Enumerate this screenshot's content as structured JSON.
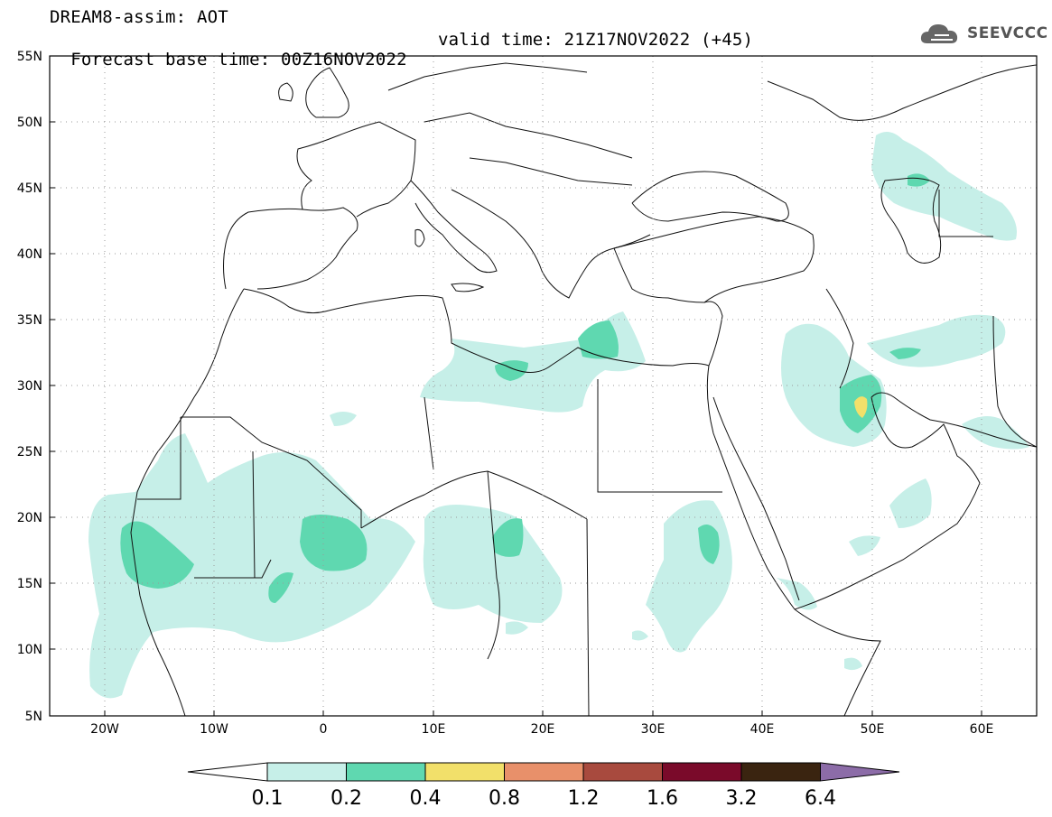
{
  "header": {
    "product_line": "DREAM8-assim: AOT",
    "base_time_line": "Forecast base time: 00Z16NOV2022",
    "valid_time_line": "valid time: 21Z17NOV2022 (+45)"
  },
  "logo": {
    "text": "SEEVCCC",
    "icon": "cloud-logo-icon"
  },
  "map": {
    "variable": "Aerosol optical thickness",
    "lon_range": [
      -25,
      65
    ],
    "lat_range": [
      5,
      55
    ],
    "lat_ticks": [
      "5N",
      "10N",
      "15N",
      "20N",
      "25N",
      "30N",
      "35N",
      "40N",
      "45N",
      "50N",
      "55N"
    ],
    "lon_ticks": [
      "20W",
      "10W",
      "0",
      "10E",
      "20E",
      "30E",
      "40E",
      "50E",
      "60E"
    ],
    "grid": "dotted"
  },
  "colorbar": {
    "levels": [
      "0.1",
      "0.2",
      "0.4",
      "0.8",
      "1.2",
      "1.6",
      "3.2",
      "6.4"
    ],
    "colors": [
      "#ffffff",
      "#c6efe8",
      "#5fd8b0",
      "#f2e06a",
      "#e8906a",
      "#a84a3e",
      "#7a0a2a",
      "#3a2410",
      "#8c6ca8"
    ]
  }
}
